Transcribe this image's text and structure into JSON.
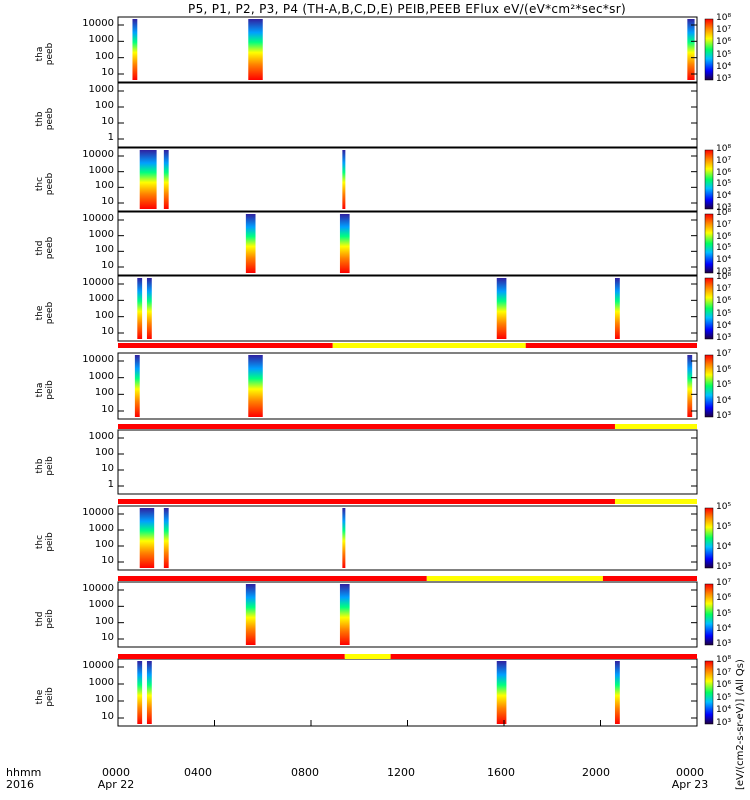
{
  "title": "P5, P1, P2, P3, P4 (TH-A,B,C,D,E) PEIB,PEEB EFlux eV/(eV*cm²*sec*sr)",
  "time_label": "hhmm",
  "year_label": "2016",
  "x_ticks": [
    "0000",
    "0400",
    "0800",
    "1200",
    "1600",
    "2000",
    "0000"
  ],
  "x_dates": [
    "Apr 22",
    "Apr 23"
  ],
  "colorbar_unit": "[eV/(cm2-s-sr-eV)] (All Qs)",
  "colors": {
    "red": "#ff0000",
    "yellow": "#ffff00",
    "black": "#000000"
  },
  "chart_data": {
    "type": "heatmap",
    "x_range_hours": [
      0,
      24
    ],
    "panels": [
      {
        "label": "tha peeb",
        "yticks": [
          "10000",
          "1000",
          "100",
          "10"
        ],
        "cb_ticks": [
          "10⁸",
          "10⁷",
          "10⁶",
          "10⁵",
          "10⁴",
          "10³"
        ],
        "intervals": [
          [
            0.6,
            0.8
          ],
          [
            5.4,
            6.0
          ],
          [
            23.6,
            23.9
          ]
        ],
        "flag_bar": []
      },
      {
        "label": "thb peeb",
        "yticks": [
          "1000",
          "100",
          "10",
          "1"
        ],
        "cb_ticks": [],
        "intervals": [],
        "flag_bar": []
      },
      {
        "label": "thc peeb",
        "yticks": [
          "10000",
          "1000",
          "100",
          "10"
        ],
        "cb_ticks": [
          "10⁸",
          "10⁷",
          "10⁶",
          "10⁵",
          "10⁴",
          "10³"
        ],
        "intervals": [
          [
            0.9,
            1.6
          ],
          [
            1.9,
            2.1
          ],
          [
            9.3,
            9.4
          ]
        ],
        "flag_bar": []
      },
      {
        "label": "thd peeb",
        "yticks": [
          "10000",
          "1000",
          "100",
          "10"
        ],
        "cb_ticks": [
          "10⁸",
          "10⁷",
          "10⁶",
          "10⁵",
          "10⁴",
          "10³"
        ],
        "intervals": [
          [
            5.3,
            5.7
          ],
          [
            9.2,
            9.6
          ]
        ],
        "flag_bar": []
      },
      {
        "label": "the peeb",
        "yticks": [
          "10000",
          "1000",
          "100",
          "10"
        ],
        "cb_ticks": [
          "10⁸",
          "10⁷",
          "10⁶",
          "10⁵",
          "10⁴",
          "10³"
        ],
        "intervals": [
          [
            0.8,
            1.0
          ],
          [
            1.2,
            1.4
          ],
          [
            15.7,
            16.1
          ],
          [
            20.6,
            20.8
          ]
        ],
        "flag_bar": [
          [
            "red",
            0,
            8.9
          ],
          [
            "yellow",
            8.9,
            16.9
          ],
          [
            "red",
            16.9,
            24
          ]
        ]
      },
      {
        "label": "tha peib",
        "yticks": [
          "10000",
          "1000",
          "100",
          "10"
        ],
        "cb_ticks": [
          "10⁷",
          "10⁶",
          "10⁵",
          "10⁴",
          "10³"
        ],
        "intervals": [
          [
            0.7,
            0.9
          ],
          [
            5.4,
            6.0
          ],
          [
            23.6,
            23.8
          ]
        ],
        "flag_bar": []
      },
      {
        "label": "thb peib",
        "yticks": [
          "1000",
          "100",
          "10",
          "1"
        ],
        "cb_ticks": [],
        "intervals": [],
        "flag_bar": [
          [
            "red",
            0,
            20.6
          ],
          [
            "yellow",
            20.6,
            24
          ]
        ]
      },
      {
        "label": "thc peib",
        "yticks": [
          "10000",
          "1000",
          "100",
          "10"
        ],
        "cb_ticks": [
          "10⁵",
          "10⁵",
          "10⁴",
          "10³"
        ],
        "intervals": [
          [
            0.9,
            1.5
          ],
          [
            1.9,
            2.1
          ],
          [
            9.3,
            9.4
          ]
        ],
        "flag_bar": [
          [
            "red",
            0,
            20.6
          ],
          [
            "yellow",
            20.6,
            24
          ]
        ]
      },
      {
        "label": "thd peib",
        "yticks": [
          "10000",
          "1000",
          "100",
          "10"
        ],
        "cb_ticks": [
          "10⁷",
          "10⁶",
          "10⁵",
          "10⁴",
          "10³"
        ],
        "intervals": [
          [
            5.3,
            5.7
          ],
          [
            9.2,
            9.6
          ]
        ],
        "flag_bar": [
          [
            "red",
            0,
            12.8
          ],
          [
            "yellow",
            12.8,
            20.1
          ],
          [
            "red",
            20.1,
            24
          ]
        ]
      },
      {
        "label": "the peib",
        "yticks": [
          "10000",
          "1000",
          "100",
          "10"
        ],
        "cb_ticks": [
          "10⁸",
          "10⁷",
          "10⁶",
          "10⁵",
          "10⁴",
          "10³"
        ],
        "intervals": [
          [
            0.8,
            1.0
          ],
          [
            1.2,
            1.4
          ],
          [
            15.7,
            16.1
          ],
          [
            20.6,
            20.8
          ]
        ],
        "flag_bar": [
          [
            "red",
            0,
            9.4
          ],
          [
            "yellow",
            9.4,
            11.3
          ],
          [
            "red",
            11.3,
            24
          ]
        ]
      }
    ]
  }
}
